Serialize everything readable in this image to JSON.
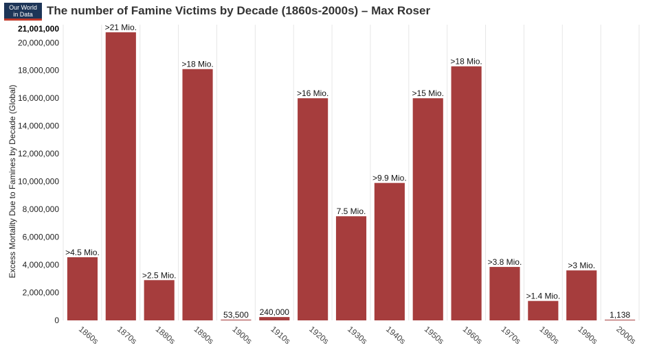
{
  "header": {
    "logo_line1": "Our World",
    "logo_line2": "in Data",
    "title": "The number of Famine Victims by Decade (1860s-2000s) – Max Roser"
  },
  "colors": {
    "bar": "#a63d3d",
    "grid": "#e6e6e6",
    "logo_bg": "#1d3557",
    "logo_accent": "#c0392b"
  },
  "chart_data": {
    "type": "bar",
    "title": "The number of Famine Victims by Decade (1860s-2000s) – Max Roser",
    "xlabel": "",
    "ylabel": "Excess Mortality Due to Famines by Decade (Global)",
    "ylim": [
      0,
      21001000
    ],
    "yticks": [
      0,
      2000000,
      4000000,
      6000000,
      8000000,
      10000000,
      12000000,
      14000000,
      16000000,
      18000000,
      20000000
    ],
    "ytick_labels": [
      "0",
      "2,000,000",
      "4,000,000",
      "6,000,000",
      "8,000,000",
      "10,000,000",
      "12,000,000",
      "14,000,000",
      "16,000,000",
      "18,000,000",
      "20,000,000"
    ],
    "ymax_label": "21,001,000",
    "categories": [
      "1860s",
      "1870s",
      "1880s",
      "1890s",
      "1900s",
      "1910s",
      "1920s",
      "1930s",
      "1940s",
      "1950s",
      "1960s",
      "1970s",
      "1980s",
      "1990s",
      "2000s"
    ],
    "values": [
      4550000,
      20750000,
      2900000,
      18100000,
      53500,
      240000,
      16000000,
      7500000,
      9900000,
      16000000,
      18300000,
      3850000,
      1400000,
      3600000,
      1138
    ],
    "data_labels": [
      ">4.5 Mio.",
      ">21 Mio.",
      ">2.5 Mio.",
      ">18 Mio.",
      "53,500",
      "240,000",
      ">16 Mio.",
      "7.5 Mio.",
      ">9.9 Mio.",
      ">15 Mio.",
      ">18 Mio.",
      ">3.8 Mio.",
      ">1.4 Mio.",
      ">3 Mio.",
      "1,138"
    ],
    "grid": true,
    "legend": "none"
  }
}
